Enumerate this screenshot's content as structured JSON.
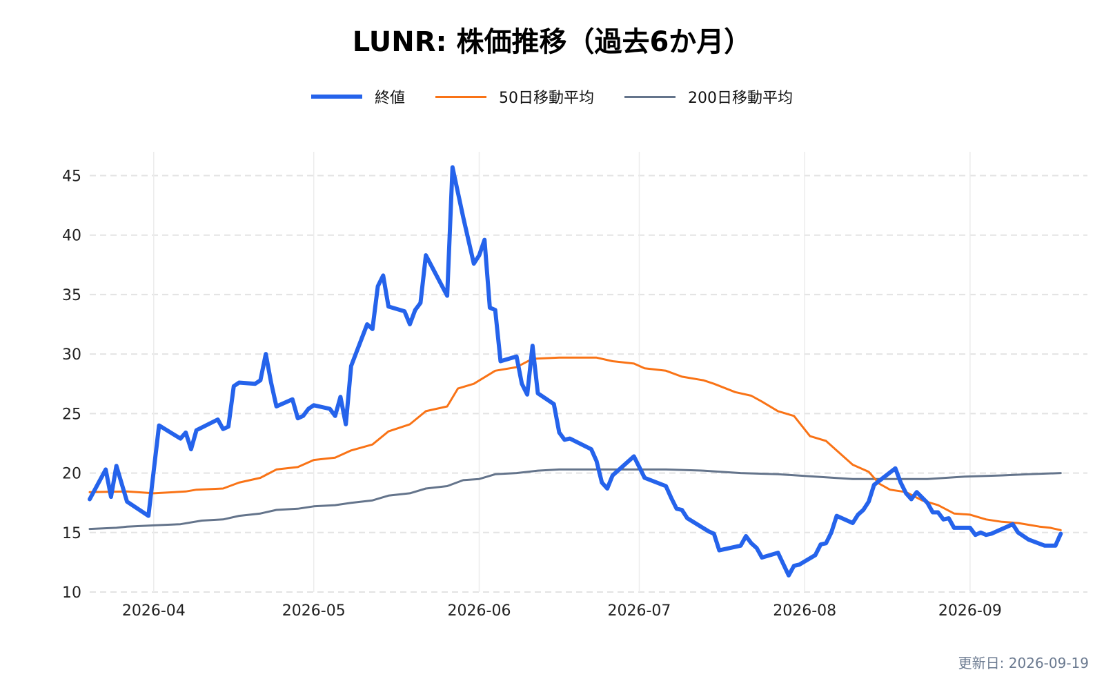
{
  "chart_data": {
    "type": "line",
    "title": "LUNR: 株価推移（過去6か月）",
    "xlabel": "",
    "ylabel": "",
    "ylim": [
      10,
      47
    ],
    "xlim": [
      "2026-03-20",
      "2026-09-23"
    ],
    "x_ticks": [
      "2026-04",
      "2026-05",
      "2026-06",
      "2026-07",
      "2026-08",
      "2026-09"
    ],
    "y_ticks": [
      10,
      15,
      20,
      25,
      30,
      35,
      40,
      45
    ],
    "grid": true,
    "legend_position": "top-center",
    "series": [
      {
        "name": "終値",
        "color": "#2563eb",
        "points": [
          [
            "2026-03-20",
            17.8
          ],
          [
            "2026-03-23",
            20.3
          ],
          [
            "2026-03-24",
            18.0
          ],
          [
            "2026-03-25",
            20.6
          ],
          [
            "2026-03-27",
            17.6
          ],
          [
            "2026-03-31",
            16.4
          ],
          [
            "2026-04-01",
            20.2
          ],
          [
            "2026-04-02",
            24.0
          ],
          [
            "2026-04-06",
            22.9
          ],
          [
            "2026-04-07",
            23.4
          ],
          [
            "2026-04-08",
            22.0
          ],
          [
            "2026-04-09",
            23.6
          ],
          [
            "2026-04-13",
            24.5
          ],
          [
            "2026-04-14",
            23.7
          ],
          [
            "2026-04-15",
            23.9
          ],
          [
            "2026-04-16",
            27.3
          ],
          [
            "2026-04-17",
            27.6
          ],
          [
            "2026-04-20",
            27.5
          ],
          [
            "2026-04-21",
            27.8
          ],
          [
            "2026-04-22",
            30.0
          ],
          [
            "2026-04-23",
            27.6
          ],
          [
            "2026-04-24",
            25.6
          ],
          [
            "2026-04-27",
            26.2
          ],
          [
            "2026-04-28",
            24.6
          ],
          [
            "2026-04-29",
            24.8
          ],
          [
            "2026-04-30",
            25.4
          ],
          [
            "2026-05-01",
            25.7
          ],
          [
            "2026-05-04",
            25.4
          ],
          [
            "2026-05-05",
            24.8
          ],
          [
            "2026-05-06",
            26.4
          ],
          [
            "2026-05-07",
            24.1
          ],
          [
            "2026-05-08",
            29.0
          ],
          [
            "2026-05-11",
            32.5
          ],
          [
            "2026-05-12",
            32.1
          ],
          [
            "2026-05-13",
            35.7
          ],
          [
            "2026-05-14",
            36.6
          ],
          [
            "2026-05-15",
            34.0
          ],
          [
            "2026-05-18",
            33.6
          ],
          [
            "2026-05-19",
            32.5
          ],
          [
            "2026-05-20",
            33.7
          ],
          [
            "2026-05-21",
            34.3
          ],
          [
            "2026-05-22",
            38.3
          ],
          [
            "2026-05-26",
            34.9
          ],
          [
            "2026-05-27",
            45.7
          ],
          [
            "2026-05-29",
            41.5
          ],
          [
            "2026-05-31",
            37.6
          ],
          [
            "2026-06-01",
            38.3
          ],
          [
            "2026-06-02",
            39.6
          ],
          [
            "2026-06-03",
            33.9
          ],
          [
            "2026-06-04",
            33.7
          ],
          [
            "2026-06-05",
            29.4
          ],
          [
            "2026-06-08",
            29.8
          ],
          [
            "2026-06-09",
            27.5
          ],
          [
            "2026-06-10",
            26.6
          ],
          [
            "2026-06-11",
            30.7
          ],
          [
            "2026-06-12",
            26.7
          ],
          [
            "2026-06-15",
            25.8
          ],
          [
            "2026-06-16",
            23.4
          ],
          [
            "2026-06-17",
            22.8
          ],
          [
            "2026-06-18",
            22.9
          ],
          [
            "2026-06-22",
            22.0
          ],
          [
            "2026-06-23",
            21.0
          ],
          [
            "2026-06-24",
            19.2
          ],
          [
            "2026-06-25",
            18.7
          ],
          [
            "2026-06-26",
            19.8
          ],
          [
            "2026-06-30",
            21.4
          ],
          [
            "2026-07-01",
            20.5
          ],
          [
            "2026-07-02",
            19.6
          ],
          [
            "2026-07-06",
            18.9
          ],
          [
            "2026-07-07",
            17.9
          ],
          [
            "2026-07-08",
            17.0
          ],
          [
            "2026-07-09",
            16.9
          ],
          [
            "2026-07-10",
            16.2
          ],
          [
            "2026-07-14",
            15.1
          ],
          [
            "2026-07-15",
            14.9
          ],
          [
            "2026-07-16",
            13.5
          ],
          [
            "2026-07-20",
            13.9
          ],
          [
            "2026-07-21",
            14.7
          ],
          [
            "2026-07-22",
            14.1
          ],
          [
            "2026-07-23",
            13.7
          ],
          [
            "2026-07-24",
            12.9
          ],
          [
            "2026-07-27",
            13.3
          ],
          [
            "2026-07-29",
            11.4
          ],
          [
            "2026-07-30",
            12.2
          ],
          [
            "2026-07-31",
            12.3
          ],
          [
            "2026-08-03",
            13.1
          ],
          [
            "2026-08-04",
            14.0
          ],
          [
            "2026-08-05",
            14.1
          ],
          [
            "2026-08-06",
            15.0
          ],
          [
            "2026-08-07",
            16.4
          ],
          [
            "2026-08-10",
            15.8
          ],
          [
            "2026-08-11",
            16.5
          ],
          [
            "2026-08-12",
            16.9
          ],
          [
            "2026-08-13",
            17.6
          ],
          [
            "2026-08-14",
            19.0
          ],
          [
            "2026-08-18",
            20.4
          ],
          [
            "2026-08-19",
            19.2
          ],
          [
            "2026-08-20",
            18.3
          ],
          [
            "2026-08-21",
            17.8
          ],
          [
            "2026-08-22",
            18.4
          ],
          [
            "2026-08-24",
            17.5
          ],
          [
            "2026-08-25",
            16.7
          ],
          [
            "2026-08-26",
            16.7
          ],
          [
            "2026-08-27",
            16.1
          ],
          [
            "2026-08-28",
            16.2
          ],
          [
            "2026-08-29",
            15.4
          ],
          [
            "2026-09-01",
            15.4
          ],
          [
            "2026-09-02",
            14.8
          ],
          [
            "2026-09-03",
            15.0
          ],
          [
            "2026-09-04",
            14.8
          ],
          [
            "2026-09-05",
            14.9
          ],
          [
            "2026-09-09",
            15.7
          ],
          [
            "2026-09-10",
            15.0
          ],
          [
            "2026-09-12",
            14.4
          ],
          [
            "2026-09-15",
            13.9
          ],
          [
            "2026-09-16",
            13.9
          ],
          [
            "2026-09-17",
            13.9
          ],
          [
            "2026-09-18",
            14.9
          ]
        ]
      },
      {
        "name": "50日移動平均",
        "color": "#f97316",
        "points": [
          [
            "2026-03-20",
            18.4
          ],
          [
            "2026-03-27",
            18.45
          ],
          [
            "2026-04-01",
            18.3
          ],
          [
            "2026-04-07",
            18.45
          ],
          [
            "2026-04-09",
            18.6
          ],
          [
            "2026-04-14",
            18.7
          ],
          [
            "2026-04-17",
            19.2
          ],
          [
            "2026-04-21",
            19.6
          ],
          [
            "2026-04-24",
            20.3
          ],
          [
            "2026-04-28",
            20.5
          ],
          [
            "2026-05-01",
            21.1
          ],
          [
            "2026-05-05",
            21.3
          ],
          [
            "2026-05-08",
            21.9
          ],
          [
            "2026-05-12",
            22.4
          ],
          [
            "2026-05-15",
            23.5
          ],
          [
            "2026-05-19",
            24.1
          ],
          [
            "2026-05-22",
            25.2
          ],
          [
            "2026-05-26",
            25.6
          ],
          [
            "2026-05-28",
            27.1
          ],
          [
            "2026-05-31",
            27.5
          ],
          [
            "2026-06-04",
            28.6
          ],
          [
            "2026-06-08",
            28.9
          ],
          [
            "2026-06-11",
            29.6
          ],
          [
            "2026-06-16",
            29.7
          ],
          [
            "2026-06-23",
            29.7
          ],
          [
            "2026-06-26",
            29.4
          ],
          [
            "2026-06-30",
            29.2
          ],
          [
            "2026-07-02",
            28.8
          ],
          [
            "2026-07-06",
            28.6
          ],
          [
            "2026-07-09",
            28.1
          ],
          [
            "2026-07-13",
            27.8
          ],
          [
            "2026-07-15",
            27.5
          ],
          [
            "2026-07-19",
            26.8
          ],
          [
            "2026-07-22",
            26.5
          ],
          [
            "2026-07-24",
            26.0
          ],
          [
            "2026-07-27",
            25.2
          ],
          [
            "2026-07-30",
            24.8
          ],
          [
            "2026-08-02",
            23.1
          ],
          [
            "2026-08-05",
            22.7
          ],
          [
            "2026-08-08",
            21.5
          ],
          [
            "2026-08-10",
            20.7
          ],
          [
            "2026-08-13",
            20.1
          ],
          [
            "2026-08-15",
            19.1
          ],
          [
            "2026-08-17",
            18.6
          ],
          [
            "2026-08-20",
            18.4
          ],
          [
            "2026-08-23",
            17.7
          ],
          [
            "2026-08-26",
            17.3
          ],
          [
            "2026-08-29",
            16.6
          ],
          [
            "2026-09-01",
            16.5
          ],
          [
            "2026-09-04",
            16.1
          ],
          [
            "2026-09-07",
            15.9
          ],
          [
            "2026-09-10",
            15.8
          ],
          [
            "2026-09-14",
            15.5
          ],
          [
            "2026-09-16",
            15.4
          ],
          [
            "2026-09-18",
            15.2
          ]
        ]
      },
      {
        "name": "200日移動平均",
        "color": "#64748b",
        "points": [
          [
            "2026-03-20",
            15.3
          ],
          [
            "2026-03-25",
            15.4
          ],
          [
            "2026-03-27",
            15.5
          ],
          [
            "2026-04-01",
            15.6
          ],
          [
            "2026-04-06",
            15.7
          ],
          [
            "2026-04-10",
            16.0
          ],
          [
            "2026-04-14",
            16.1
          ],
          [
            "2026-04-17",
            16.4
          ],
          [
            "2026-04-21",
            16.6
          ],
          [
            "2026-04-24",
            16.9
          ],
          [
            "2026-04-28",
            17.0
          ],
          [
            "2026-05-01",
            17.2
          ],
          [
            "2026-05-05",
            17.3
          ],
          [
            "2026-05-08",
            17.5
          ],
          [
            "2026-05-12",
            17.7
          ],
          [
            "2026-05-15",
            18.1
          ],
          [
            "2026-05-19",
            18.3
          ],
          [
            "2026-05-22",
            18.7
          ],
          [
            "2026-05-26",
            18.9
          ],
          [
            "2026-05-29",
            19.4
          ],
          [
            "2026-06-01",
            19.5
          ],
          [
            "2026-06-04",
            19.9
          ],
          [
            "2026-06-08",
            20.0
          ],
          [
            "2026-06-12",
            20.2
          ],
          [
            "2026-06-16",
            20.3
          ],
          [
            "2026-06-22",
            20.3
          ],
          [
            "2026-06-30",
            20.3
          ],
          [
            "2026-07-06",
            20.3
          ],
          [
            "2026-07-13",
            20.2
          ],
          [
            "2026-07-20",
            20.0
          ],
          [
            "2026-07-27",
            19.9
          ],
          [
            "2026-08-03",
            19.7
          ],
          [
            "2026-08-10",
            19.5
          ],
          [
            "2026-08-17",
            19.5
          ],
          [
            "2026-08-24",
            19.5
          ],
          [
            "2026-08-31",
            19.7
          ],
          [
            "2026-09-07",
            19.8
          ],
          [
            "2026-09-12",
            19.9
          ],
          [
            "2026-09-18",
            20.0
          ]
        ]
      }
    ]
  },
  "footer": {
    "updated": "更新日: 2026-09-19"
  }
}
